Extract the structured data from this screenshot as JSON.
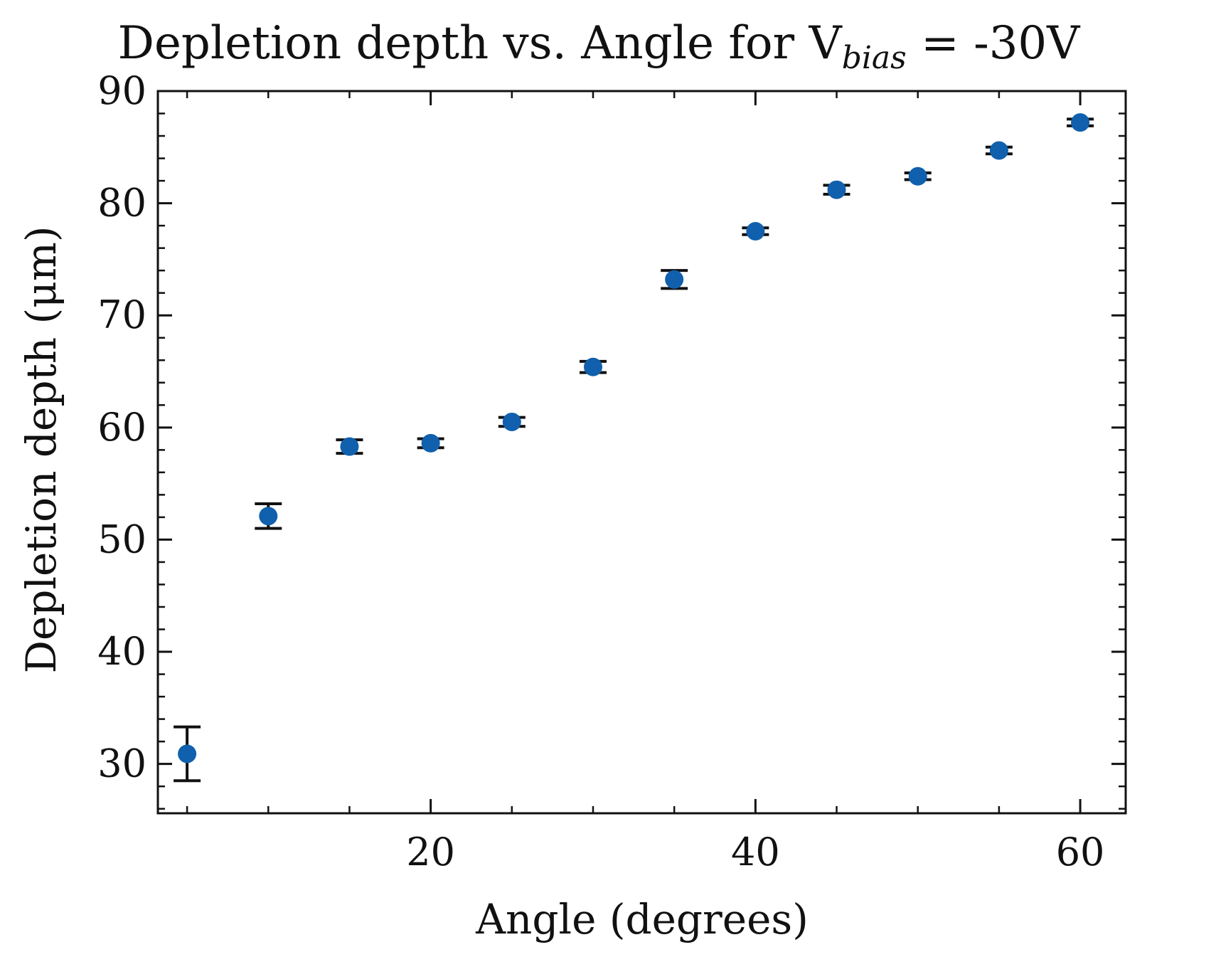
{
  "chart_data": {
    "type": "scatter",
    "title_main": "Depletion depth vs. Angle for V",
    "title_sub": "bias",
    "title_tail": " = -30V",
    "xlabel": "Angle (degrees)",
    "ylabel": "Depletion depth (μm)",
    "xlim": [
      3.2,
      62.8
    ],
    "ylim": [
      25.6,
      90
    ],
    "xticks": [
      20,
      40,
      60
    ],
    "xtick_labels": [
      "20",
      "40",
      "60"
    ],
    "yticks": [
      30,
      40,
      50,
      60,
      70,
      80,
      90
    ],
    "ytick_labels": [
      "30",
      "40",
      "50",
      "60",
      "70",
      "80",
      "90"
    ],
    "x_minor_step": 5,
    "y_minor_step": 2,
    "grid": false,
    "marker_color": "#1060ad",
    "errorbar_color": "#111111",
    "series": [
      {
        "x": [
          5,
          10,
          15,
          20,
          25,
          30,
          35,
          40,
          45,
          50,
          55,
          60
        ],
        "y": [
          30.9,
          52.1,
          58.3,
          58.6,
          60.5,
          65.4,
          73.2,
          77.5,
          81.2,
          82.4,
          84.7,
          87.2
        ],
        "yerr": [
          2.4,
          1.1,
          0.6,
          0.4,
          0.4,
          0.5,
          0.8,
          0.3,
          0.4,
          0.3,
          0.3,
          0.3
        ]
      }
    ]
  }
}
